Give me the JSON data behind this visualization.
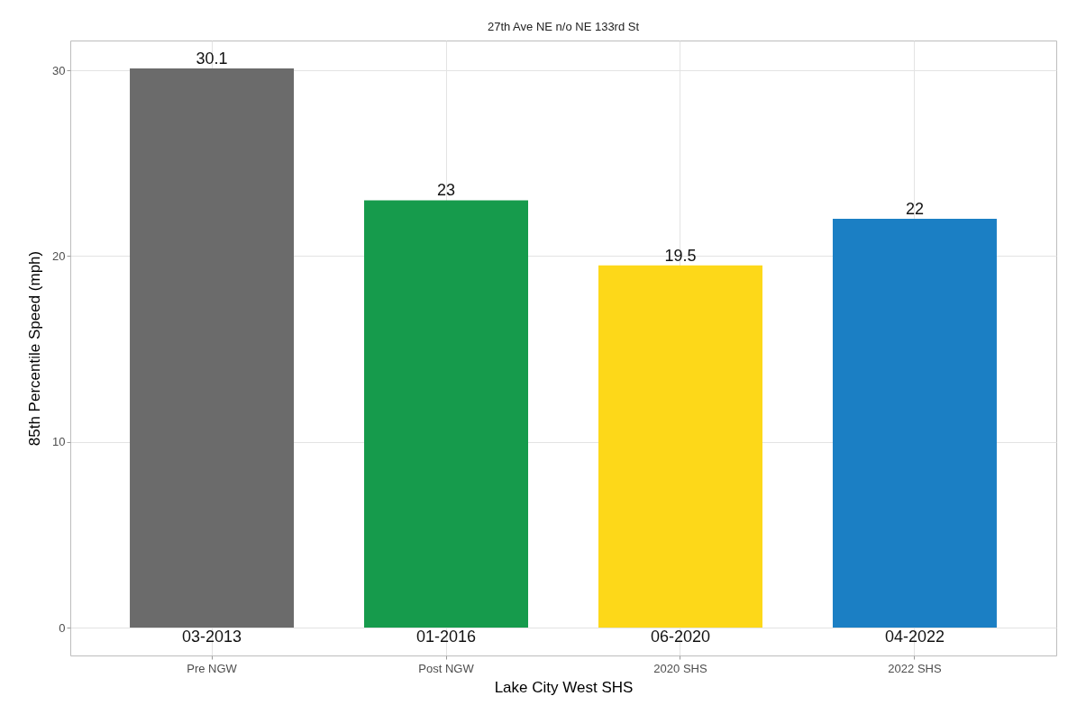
{
  "chart_data": {
    "type": "bar",
    "title": "27th Ave NE n/o NE 133rd St",
    "xlabel": "Lake City West SHS",
    "ylabel": "85th Percentile Speed (mph)",
    "categories": [
      "Pre NGW",
      "Post NGW",
      "2020 SHS",
      "2022 SHS"
    ],
    "values": [
      30.1,
      23,
      19.5,
      22
    ],
    "colors": [
      "#6b6b6b",
      "#169b4c",
      "#fdd819",
      "#1b7fc4"
    ],
    "ylim": [
      -1.5,
      31.6
    ],
    "yticks": [
      0,
      10,
      20,
      30
    ],
    "grid": true,
    "data_labels": true,
    "annotations": [
      {
        "text": "03-2013",
        "x": "Pre NGW",
        "y": 0
      },
      {
        "text": "01-2016",
        "x": "Post NGW",
        "y": 0
      },
      {
        "text": "06-2020",
        "x": "2020 SHS",
        "y": 0
      },
      {
        "text": "04-2022",
        "x": "2022 SHS",
        "y": 0
      }
    ]
  }
}
